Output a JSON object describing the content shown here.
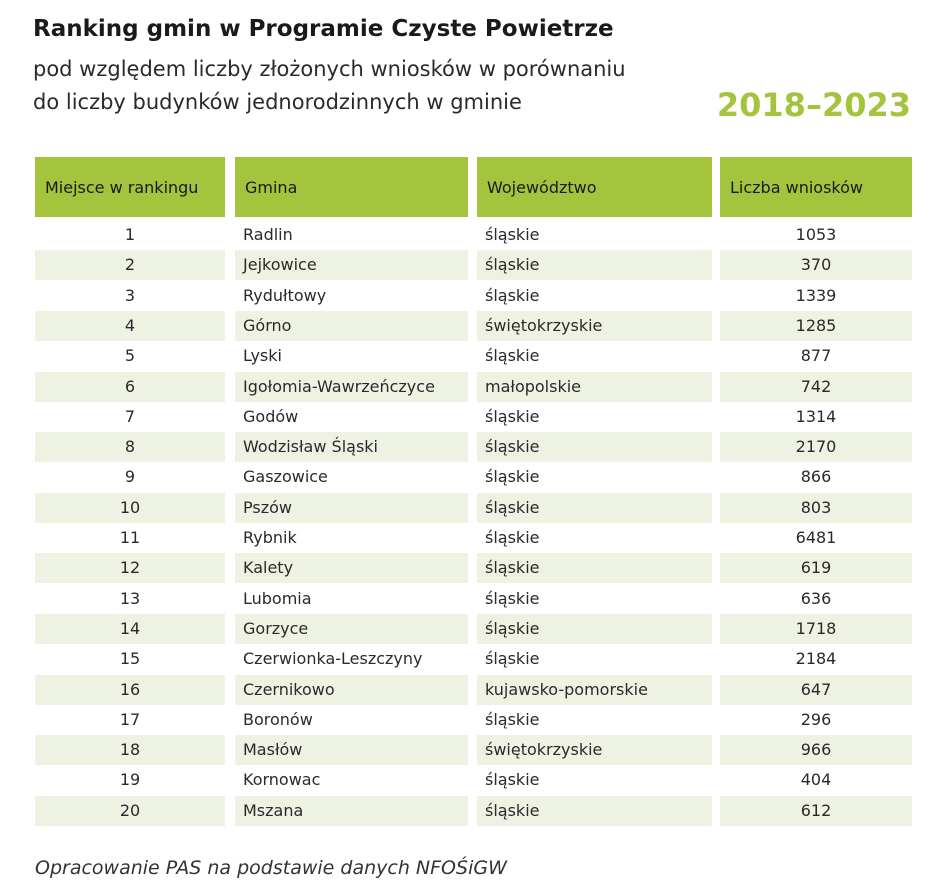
{
  "header": {
    "title": "Ranking gmin w Programie Czyste Powietrze",
    "subtitle": [
      "pod względem liczby złożonych wniosków w porównaniu",
      "do liczby budynków jednorodzinnych w gminie"
    ],
    "years": "2018–2023"
  },
  "table": {
    "columns": [
      "Miejsce w rankingu",
      "Gmina",
      "Województwo",
      "Liczba wniosków"
    ],
    "rows": [
      [
        1,
        "Radlin",
        "śląskie",
        1053
      ],
      [
        2,
        "Jejkowice",
        "śląskie",
        370
      ],
      [
        3,
        "Rydułtowy",
        "śląskie",
        1339
      ],
      [
        4,
        "Górno",
        "świętokrzyskie",
        1285
      ],
      [
        5,
        "Lyski",
        "śląskie",
        877
      ],
      [
        6,
        "Igołomia-Wawrzeńczyce",
        "małopolskie",
        742
      ],
      [
        7,
        "Godów",
        "śląskie",
        1314
      ],
      [
        8,
        "Wodzisław Śląski",
        "śląskie",
        2170
      ],
      [
        9,
        "Gaszowice",
        "śląskie",
        866
      ],
      [
        10,
        "Pszów",
        "śląskie",
        803
      ],
      [
        11,
        "Rybnik",
        "śląskie",
        6481
      ],
      [
        12,
        "Kalety",
        "śląskie",
        619
      ],
      [
        13,
        "Lubomia",
        "śląskie",
        636
      ],
      [
        14,
        "Gorzyce",
        "śląskie",
        1718
      ],
      [
        15,
        "Czerwionka-Leszczyny",
        "śląskie",
        2184
      ],
      [
        16,
        "Czernikowo",
        "kujawsko-pomorskie",
        647
      ],
      [
        17,
        "Boronów",
        "śląskie",
        296
      ],
      [
        18,
        "Masłów",
        "świętokrzyskie",
        966
      ],
      [
        19,
        "Kornowac",
        "śląskie",
        404
      ],
      [
        20,
        "Mszana",
        "śląskie",
        612
      ]
    ]
  },
  "footer": "Opracowanie PAS na podstawie danych NFOŚiGW"
}
